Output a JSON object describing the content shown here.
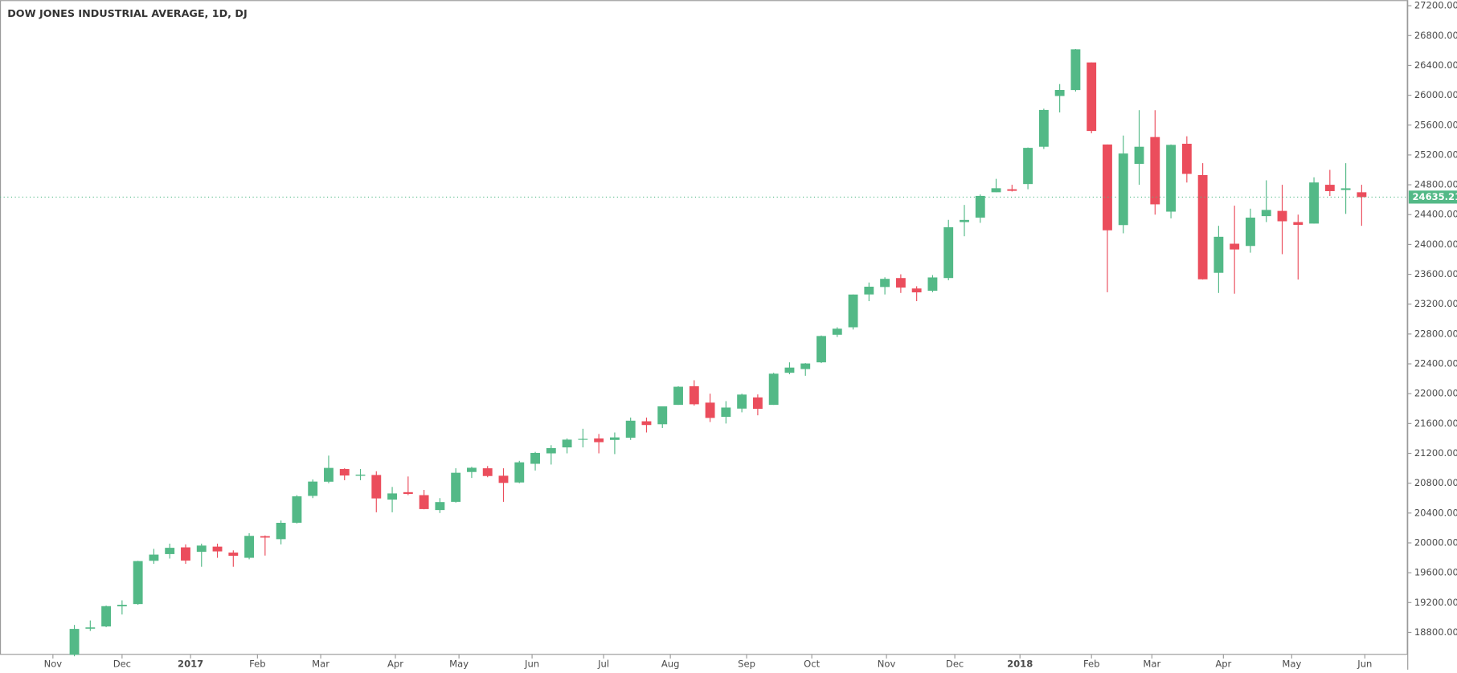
{
  "chart_data": {
    "type": "candlestick",
    "title": "DOW JONES INDUSTRIAL AVERAGE, 1D, DJ",
    "up_color": "#53b987",
    "down_color": "#eb4d5c",
    "candles": [
      [
        18500,
        18900,
        18480,
        18847
      ],
      [
        18850,
        18960,
        18820,
        18867
      ],
      [
        18880,
        19160,
        18870,
        19152
      ],
      [
        19150,
        19230,
        19040,
        19170
      ],
      [
        19180,
        19760,
        19170,
        19756
      ],
      [
        19760,
        19920,
        19720,
        19843
      ],
      [
        19850,
        19990,
        19790,
        19934
      ],
      [
        19940,
        19980,
        19720,
        19763
      ],
      [
        19880,
        19990,
        19680,
        19964
      ],
      [
        19950,
        19990,
        19800,
        19886
      ],
      [
        19870,
        19900,
        19680,
        19827
      ],
      [
        19800,
        20130,
        19780,
        20094
      ],
      [
        20090,
        20100,
        19830,
        20071
      ],
      [
        20050,
        20300,
        19980,
        20269
      ],
      [
        20270,
        20640,
        20260,
        20624
      ],
      [
        20630,
        20850,
        20600,
        20822
      ],
      [
        20820,
        21170,
        20800,
        21005
      ],
      [
        20990,
        21000,
        20840,
        20903
      ],
      [
        20900,
        20990,
        20840,
        20915
      ],
      [
        20910,
        20960,
        20410,
        20596
      ],
      [
        20580,
        20750,
        20410,
        20663
      ],
      [
        20680,
        20890,
        20640,
        20656
      ],
      [
        20640,
        20710,
        20450,
        20453
      ],
      [
        20440,
        20600,
        20400,
        20547
      ],
      [
        20550,
        21000,
        20540,
        20940
      ],
      [
        20950,
        21020,
        20870,
        21007
      ],
      [
        21000,
        21030,
        20880,
        20896
      ],
      [
        20900,
        21000,
        20550,
        20804
      ],
      [
        20810,
        21100,
        20800,
        21080
      ],
      [
        21060,
        21220,
        20970,
        21206
      ],
      [
        21200,
        21310,
        21050,
        21271
      ],
      [
        21280,
        21400,
        21200,
        21384
      ],
      [
        21390,
        21530,
        21280,
        21394
      ],
      [
        21400,
        21460,
        21200,
        21350
      ],
      [
        21380,
        21480,
        21190,
        21414
      ],
      [
        21410,
        21680,
        21380,
        21638
      ],
      [
        21630,
        21680,
        21480,
        21580
      ],
      [
        21590,
        21830,
        21540,
        21830
      ],
      [
        21850,
        22100,
        21850,
        22093
      ],
      [
        22100,
        22180,
        21840,
        21858
      ],
      [
        21880,
        22000,
        21620,
        21675
      ],
      [
        21690,
        21900,
        21600,
        21814
      ],
      [
        21800,
        22000,
        21750,
        21988
      ],
      [
        21950,
        21990,
        21710,
        21797
      ],
      [
        21850,
        22280,
        21850,
        22268
      ],
      [
        22280,
        22420,
        22260,
        22350
      ],
      [
        22330,
        22410,
        22240,
        22405
      ],
      [
        22420,
        22780,
        22410,
        22773
      ],
      [
        22790,
        22890,
        22760,
        22871
      ],
      [
        22890,
        23330,
        22860,
        23329
      ],
      [
        23330,
        23490,
        23240,
        23434
      ],
      [
        23430,
        23560,
        23330,
        23539
      ],
      [
        23550,
        23600,
        23350,
        23422
      ],
      [
        23410,
        23440,
        23240,
        23358
      ],
      [
        23380,
        23590,
        23360,
        23558
      ],
      [
        23550,
        24330,
        23520,
        24231
      ],
      [
        24300,
        24530,
        24110,
        24329
      ],
      [
        24360,
        24670,
        24290,
        24651
      ],
      [
        24700,
        24880,
        24700,
        24754
      ],
      [
        24740,
        24800,
        24710,
        24719
      ],
      [
        24810,
        25300,
        24740,
        25295
      ],
      [
        25310,
        25820,
        25280,
        25803
      ],
      [
        25990,
        26150,
        25770,
        26071
      ],
      [
        26070,
        26620,
        26050,
        26616
      ],
      [
        26440,
        26440,
        25490,
        25521
      ],
      [
        25340,
        25340,
        23360,
        24190
      ],
      [
        24260,
        25460,
        24150,
        25219
      ],
      [
        25080,
        25800,
        24800,
        25310
      ],
      [
        25440,
        25800,
        24400,
        24538
      ],
      [
        24440,
        25340,
        24350,
        25335
      ],
      [
        25350,
        25450,
        24830,
        24946
      ],
      [
        24930,
        25090,
        23530,
        23533
      ],
      [
        23620,
        24250,
        23350,
        24103
      ],
      [
        24010,
        24520,
        23340,
        23933
      ],
      [
        23980,
        24480,
        23890,
        24360
      ],
      [
        24380,
        24860,
        24300,
        24463
      ],
      [
        24450,
        24800,
        23870,
        24311
      ],
      [
        24300,
        24400,
        23530,
        24263
      ],
      [
        24280,
        24900,
        24280,
        24831
      ],
      [
        24800,
        25000,
        24650,
        24715
      ],
      [
        24730,
        25090,
        24410,
        24753
      ],
      [
        24700,
        24800,
        24250,
        24635
      ]
    ],
    "last_price": 24635.21,
    "xlim": [
      -4.68,
      83.9
    ],
    "xticks": [
      {
        "value": -1.35,
        "label": "Nov"
      },
      {
        "value": 3.0,
        "label": "Dec"
      },
      {
        "value": 7.31,
        "label": "2017"
      },
      {
        "value": 11.52,
        "label": "Feb"
      },
      {
        "value": 15.5,
        "label": "Mar"
      },
      {
        "value": 20.2,
        "label": "Apr"
      },
      {
        "value": 24.2,
        "label": "May"
      },
      {
        "value": 28.8,
        "label": "Jun"
      },
      {
        "value": 33.3,
        "label": "Jul"
      },
      {
        "value": 37.5,
        "label": "Aug"
      },
      {
        "value": 42.3,
        "label": "Sep"
      },
      {
        "value": 46.4,
        "label": "Oct"
      },
      {
        "value": 51.1,
        "label": "Nov"
      },
      {
        "value": 55.4,
        "label": "Dec"
      },
      {
        "value": 59.5,
        "label": "2018"
      },
      {
        "value": 64.0,
        "label": "Feb"
      },
      {
        "value": 67.8,
        "label": "Mar"
      },
      {
        "value": 72.3,
        "label": "Apr"
      },
      {
        "value": 76.6,
        "label": "May"
      },
      {
        "value": 81.2,
        "label": "Jun"
      }
    ],
    "ylim": [
      18500,
      27275
    ],
    "yticks": [
      {
        "value": 18800,
        "label": "18800.00"
      },
      {
        "value": 19200,
        "label": "19200.00"
      },
      {
        "value": 19600,
        "label": "19600.00"
      },
      {
        "value": 20000,
        "label": "20000.00"
      },
      {
        "value": 20400,
        "label": "20400.00"
      },
      {
        "value": 20800,
        "label": "20800.00"
      },
      {
        "value": 21200,
        "label": "21200.00"
      },
      {
        "value": 21600,
        "label": "21600.00"
      },
      {
        "value": 22000,
        "label": "22000.00"
      },
      {
        "value": 22400,
        "label": "22400.00"
      },
      {
        "value": 22800,
        "label": "22800.00"
      },
      {
        "value": 23200,
        "label": "23200.00"
      },
      {
        "value": 23600,
        "label": "23600.00"
      },
      {
        "value": 24000,
        "label": "24000.00"
      },
      {
        "value": 24400,
        "label": "24400.00"
      },
      {
        "value": 24800,
        "label": "24800.00"
      },
      {
        "value": 25200,
        "label": "25200.00"
      },
      {
        "value": 25600,
        "label": "25600.00"
      },
      {
        "value": 26000,
        "label": "26000.00"
      },
      {
        "value": 26400,
        "label": "26400.00"
      },
      {
        "value": 26800,
        "label": "26800.00"
      },
      {
        "value": 27200,
        "label": "27200.00"
      }
    ]
  }
}
